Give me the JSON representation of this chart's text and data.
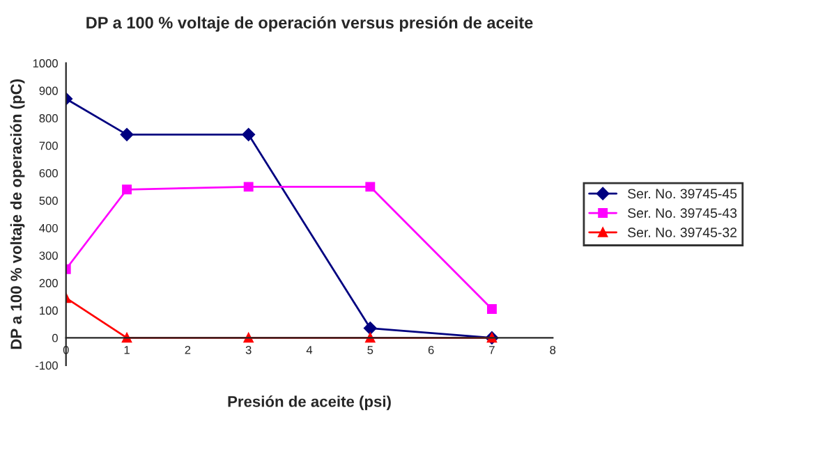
{
  "chart_data": {
    "type": "line",
    "title": "DP a 100 % voltaje de operación versus presión de aceite",
    "xlabel": "Presión de aceite (psi)",
    "ylabel": "DP a 100 % voltaje de operación (pC)",
    "series": [
      {
        "name": "Ser. No. 39745-45",
        "color": "#000080",
        "marker": "diamond",
        "x": [
          0,
          1,
          3,
          5,
          7
        ],
        "values": [
          870,
          740,
          740,
          35,
          0
        ]
      },
      {
        "name": "Ser. No. 39745-43",
        "color": "#ff00ff",
        "marker": "square",
        "x": [
          0,
          1,
          3,
          5,
          7
        ],
        "values": [
          250,
          540,
          550,
          550,
          105
        ]
      },
      {
        "name": "Ser. No. 39745-32",
        "color": "#ff0000",
        "marker": "triangle",
        "x": [
          0,
          1,
          3,
          5,
          7
        ],
        "values": [
          145,
          0,
          0,
          0,
          0
        ]
      }
    ],
    "xlim": [
      0,
      8
    ],
    "xticks": [
      0,
      1,
      2,
      3,
      4,
      5,
      6,
      7,
      8
    ],
    "ylim": [
      -100,
      1000
    ],
    "yticks": [
      -100,
      0,
      100,
      200,
      300,
      400,
      500,
      600,
      700,
      800,
      900,
      1000
    ],
    "grid": false,
    "legend": "right"
  }
}
